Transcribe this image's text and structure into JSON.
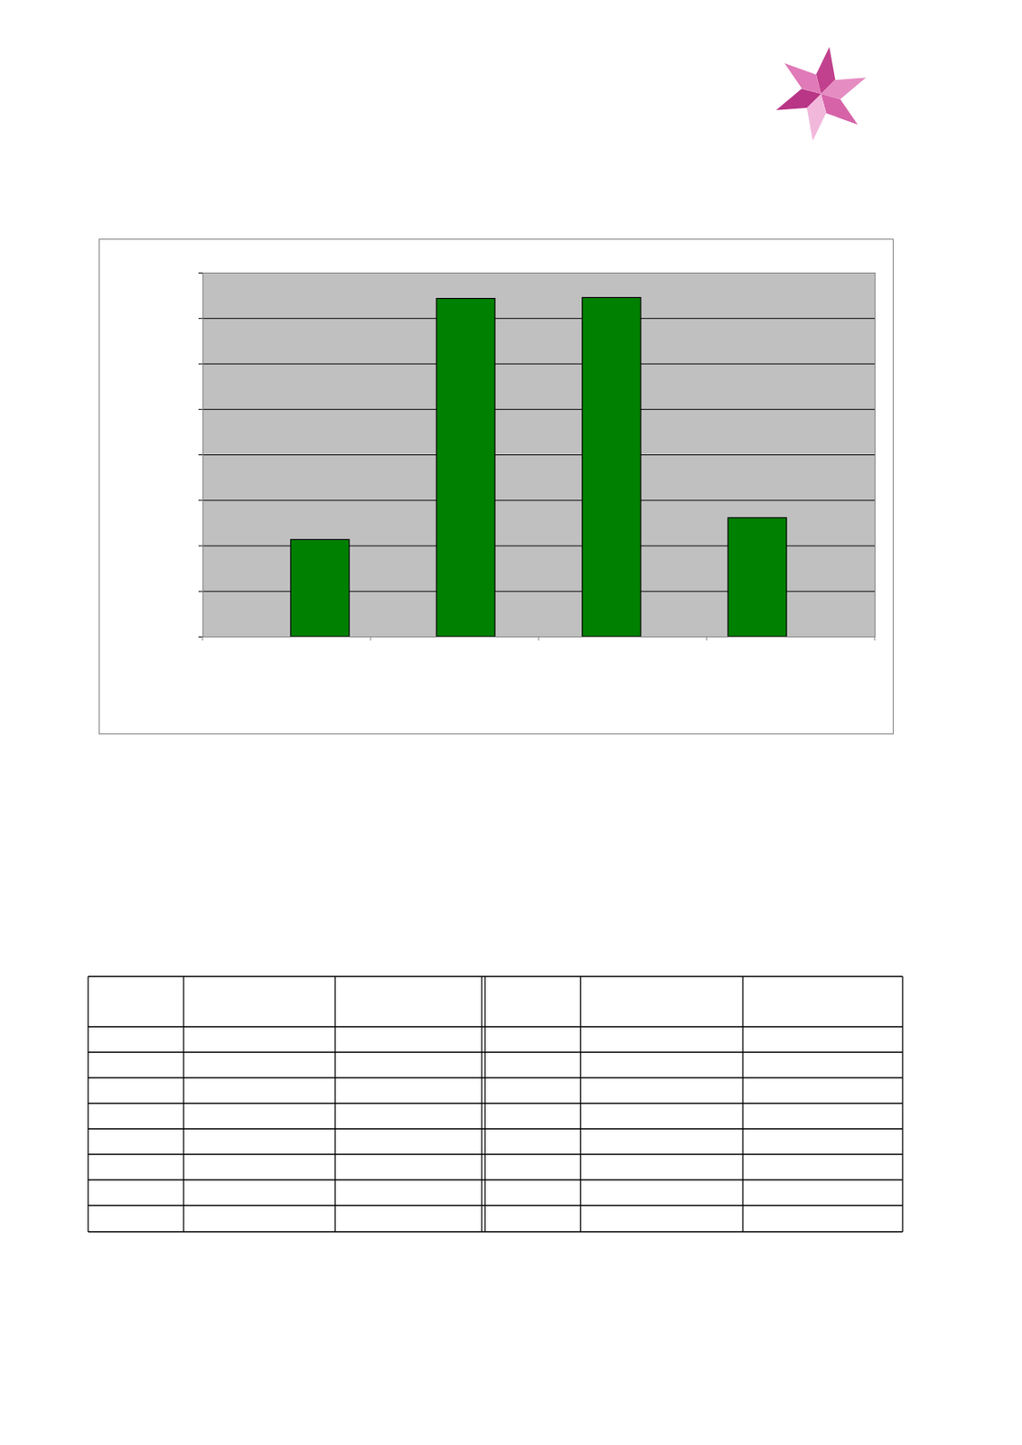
{
  "chart_data": {
    "type": "bar",
    "categories": [
      null,
      null,
      null,
      null
    ],
    "values": [
      2.13,
      7.43,
      7.45,
      2.61
    ],
    "color": "#008000",
    "ylim": [
      0,
      8
    ],
    "yticks": [
      0,
      1,
      2,
      3,
      4,
      5,
      6,
      7,
      8
    ],
    "grid": true,
    "tick_labels": false
  }
}
